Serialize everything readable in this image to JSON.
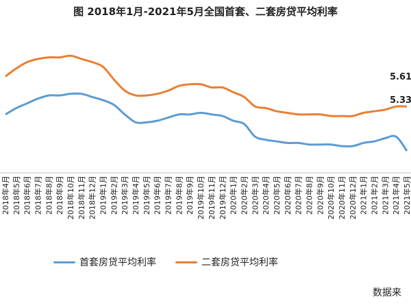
{
  "chart_data": {
    "type": "line",
    "title": "图 2018年1月-2021年5月全国首套、二套房贷平均利率",
    "categories": [
      "2018年4月",
      "2018年5月",
      "2018年6月",
      "2018年7月",
      "2018年8月",
      "2018年9月",
      "2018年10月",
      "2018年11月",
      "2018年12月",
      "2019年1月",
      "2019年2月",
      "2019年3月",
      "2019年4月",
      "2019年5月",
      "2019年6月",
      "2019年7月",
      "2019年8月",
      "2019年9月",
      "2019年10月",
      "2019年11月",
      "2019年12月",
      "2020年1月",
      "2020年2月",
      "2020年3月",
      "2020年4月",
      "2020年5月",
      "2020年6月",
      "2020年7月",
      "2020年8月",
      "2020年9月",
      "2020年10月",
      "2020年11月",
      "2020年12月",
      "2021年1月",
      "2021年2月",
      "2021年3月",
      "2021年4月",
      "2021年5月"
    ],
    "series": [
      {
        "name": "首套房贷平均利率",
        "color": "#5b9bd5",
        "values": [
          5.56,
          5.6,
          5.63,
          5.66,
          5.68,
          5.68,
          5.69,
          5.69,
          5.67,
          5.65,
          5.62,
          5.56,
          5.51,
          5.51,
          5.52,
          5.54,
          5.56,
          5.56,
          5.57,
          5.56,
          5.55,
          5.52,
          5.5,
          5.42,
          5.4,
          5.39,
          5.38,
          5.38,
          5.37,
          5.37,
          5.37,
          5.36,
          5.36,
          5.38,
          5.39,
          5.41,
          5.42,
          5.33
        ]
      },
      {
        "name": "二套房贷平均利率",
        "color": "#ed7d31",
        "values": [
          5.8,
          5.85,
          5.89,
          5.91,
          5.92,
          5.92,
          5.93,
          5.91,
          5.89,
          5.86,
          5.78,
          5.71,
          5.68,
          5.68,
          5.69,
          5.71,
          5.74,
          5.75,
          5.75,
          5.73,
          5.73,
          5.7,
          5.67,
          5.61,
          5.6,
          5.58,
          5.57,
          5.56,
          5.56,
          5.56,
          5.55,
          5.55,
          5.55,
          5.57,
          5.58,
          5.59,
          5.61,
          5.61
        ]
      }
    ],
    "annotations": [
      "5.61",
      "5.33"
    ],
    "source_text": "数据来",
    "xlabel": "",
    "ylabel": "",
    "grid": false,
    "legend": "bottom"
  }
}
